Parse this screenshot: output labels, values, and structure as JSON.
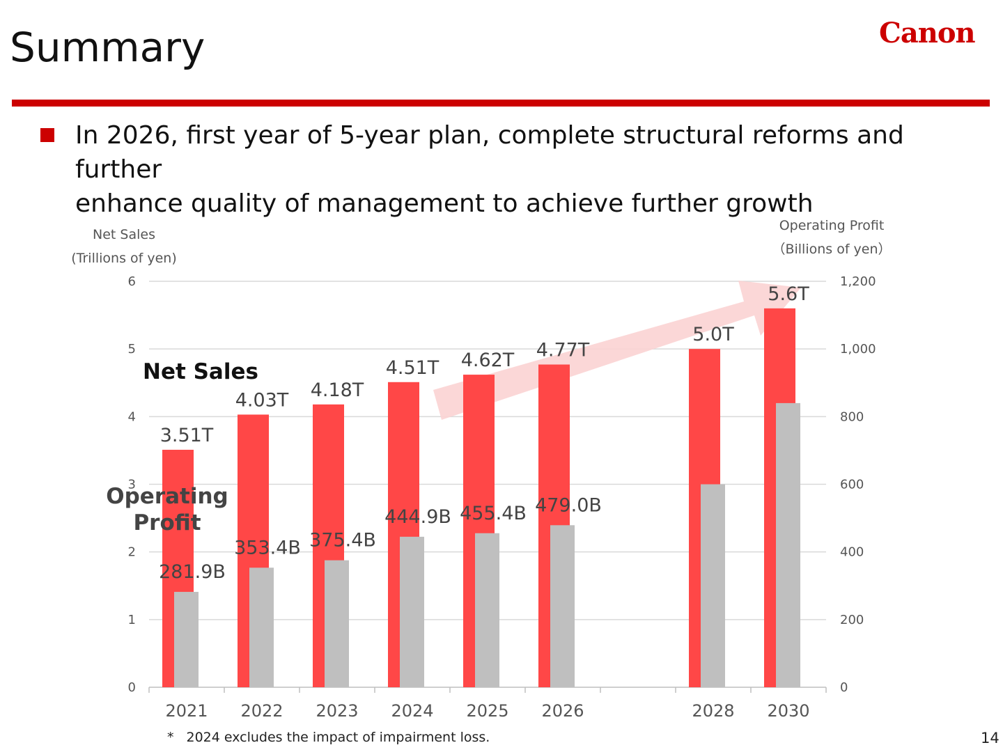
{
  "header": {
    "title": "Summary",
    "logo_text": "Canon"
  },
  "bullet": {
    "line1": "In 2026, first year of 5-year plan, complete structural reforms and further",
    "line2": "enhance quality of management to achieve further growth"
  },
  "footnote": {
    "marker": "*",
    "text": "2024 excludes the impact of impairment loss."
  },
  "page_number": "14",
  "colors": {
    "brand_red": "#cc0000",
    "net_sales_bar": "#ff4747",
    "operating_profit_bar": "#bfbfbf",
    "growth_arrow": "#fbd3d3"
  },
  "chart_data": {
    "type": "bar",
    "categories": [
      "2021",
      "2022",
      "2023",
      "2024",
      "2025",
      "2026",
      "",
      "2028",
      "2030"
    ],
    "left_axis": {
      "title_line1": "Net Sales",
      "title_line2": "(Trillions of yen)",
      "ylim": [
        0,
        6
      ],
      "ticks": [
        "0",
        "1",
        "2",
        "3",
        "4",
        "5",
        "6"
      ]
    },
    "right_axis": {
      "title_line1": "Operating Profit",
      "title_line2": "（Billions of yen）",
      "ylim": [
        0,
        1200
      ],
      "ticks": [
        "0",
        "200",
        "400",
        "600",
        "800",
        "1,000",
        "1,200"
      ]
    },
    "series": [
      {
        "name": "Net Sales",
        "axis": "left",
        "values": [
          3.51,
          4.03,
          4.18,
          4.51,
          4.62,
          4.77,
          null,
          5.0,
          5.6
        ],
        "labels": [
          "3.51T",
          "4.03T",
          "4.18T",
          "4.51T",
          "4.62T",
          "4.77T",
          "",
          "5.0T",
          "5.6T"
        ]
      },
      {
        "name": "Operating Profit",
        "axis": "right",
        "label_line1": "Operating",
        "label_line2": "Profit",
        "values": [
          281.9,
          353.4,
          375.4,
          444.9,
          455.4,
          479.0,
          null,
          600,
          840
        ],
        "labels": [
          "281.9B",
          "353.4B",
          "375.4B",
          "444.9B",
          "455.4B",
          "479.0B",
          "",
          "",
          ""
        ]
      }
    ],
    "grid": true,
    "annotation": "growth arrow from 2025 toward 2030"
  }
}
